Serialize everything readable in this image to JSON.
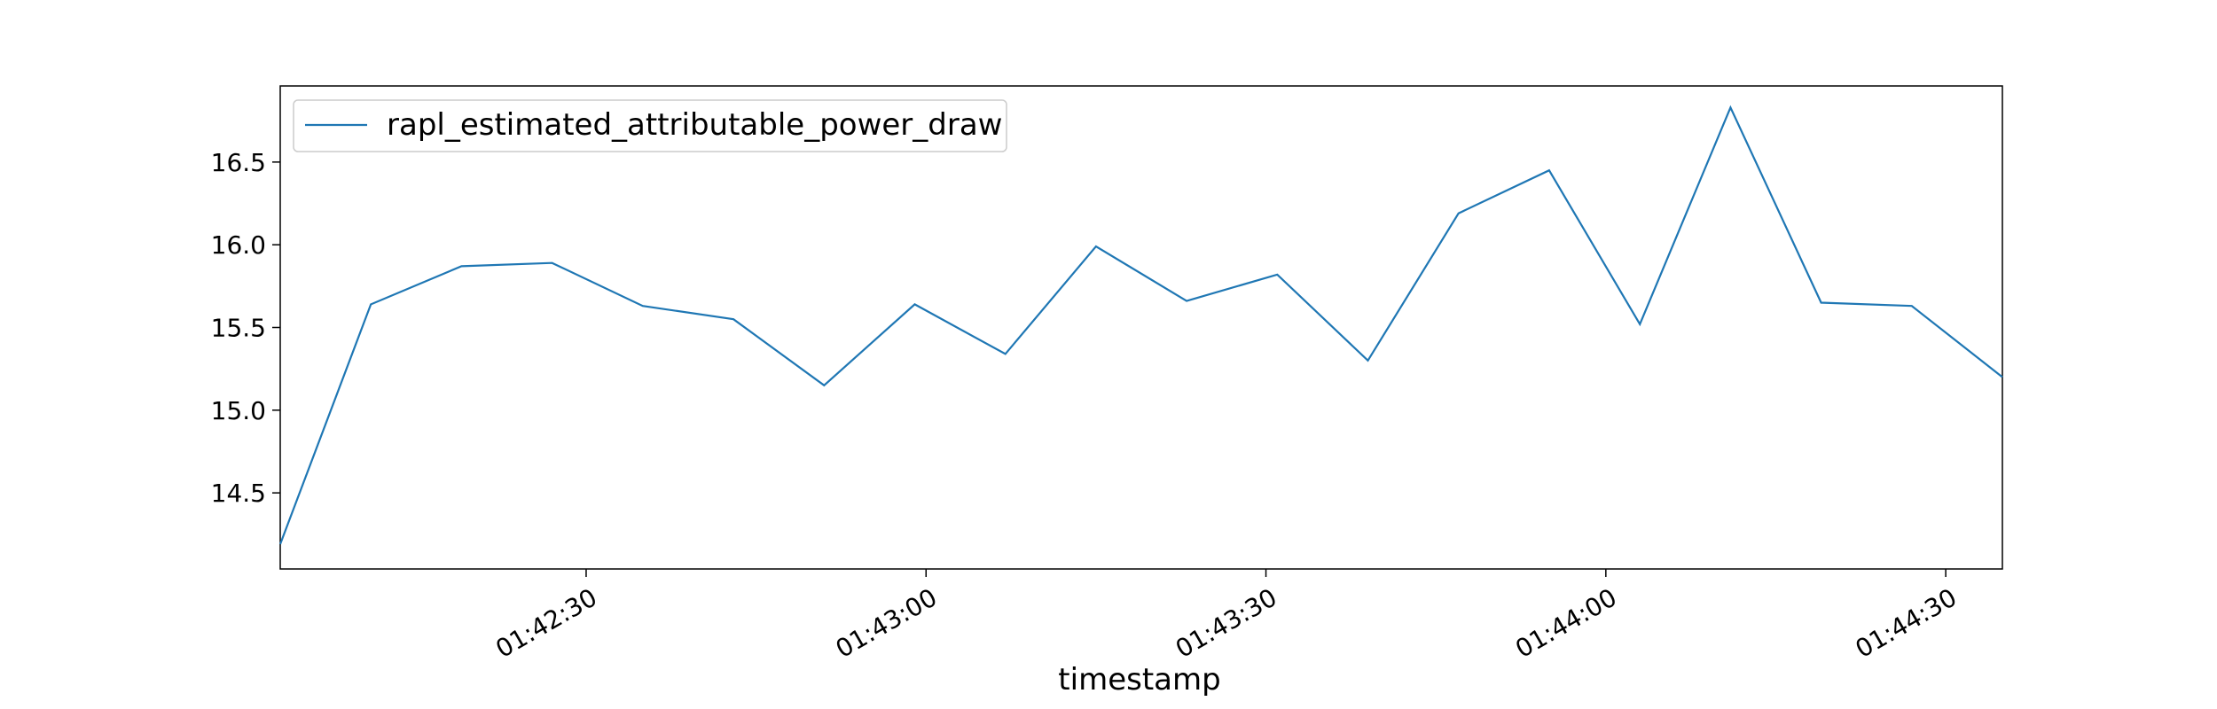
{
  "chart_data": {
    "type": "line",
    "title": "",
    "xlabel": "timestamp",
    "ylabel": "",
    "x": [
      "01:42:03",
      "01:42:11",
      "01:42:19",
      "01:42:27",
      "01:42:35",
      "01:42:43",
      "01:42:51",
      "01:42:59",
      "01:43:07",
      "01:43:15",
      "01:43:23",
      "01:43:31",
      "01:43:39",
      "01:43:47",
      "01:43:55",
      "01:44:03",
      "01:44:11",
      "01:44:19",
      "01:44:27",
      "01:44:35"
    ],
    "series": [
      {
        "name": "rapl_estimated_attributable_power_draw",
        "color": "#1f77b4",
        "values": [
          14.19,
          15.64,
          15.87,
          15.89,
          15.63,
          15.55,
          15.15,
          15.64,
          15.34,
          15.99,
          15.66,
          15.82,
          15.3,
          16.19,
          16.45,
          15.52,
          16.83,
          15.65,
          15.63,
          15.2
        ]
      }
    ],
    "xlim": [
      "01:42:03",
      "01:44:35"
    ],
    "ylim": [
      14.04,
      16.96
    ],
    "x_ticks": [
      "01:42:30",
      "01:43:00",
      "01:43:30",
      "01:44:00",
      "01:44:30"
    ],
    "y_ticks": [
      14.5,
      15.0,
      15.5,
      16.0,
      16.5
    ],
    "y_tick_labels": [
      "14.5",
      "15.0",
      "15.5",
      "16.0",
      "16.5"
    ],
    "legend_position": "upper-left",
    "grid": false
  }
}
